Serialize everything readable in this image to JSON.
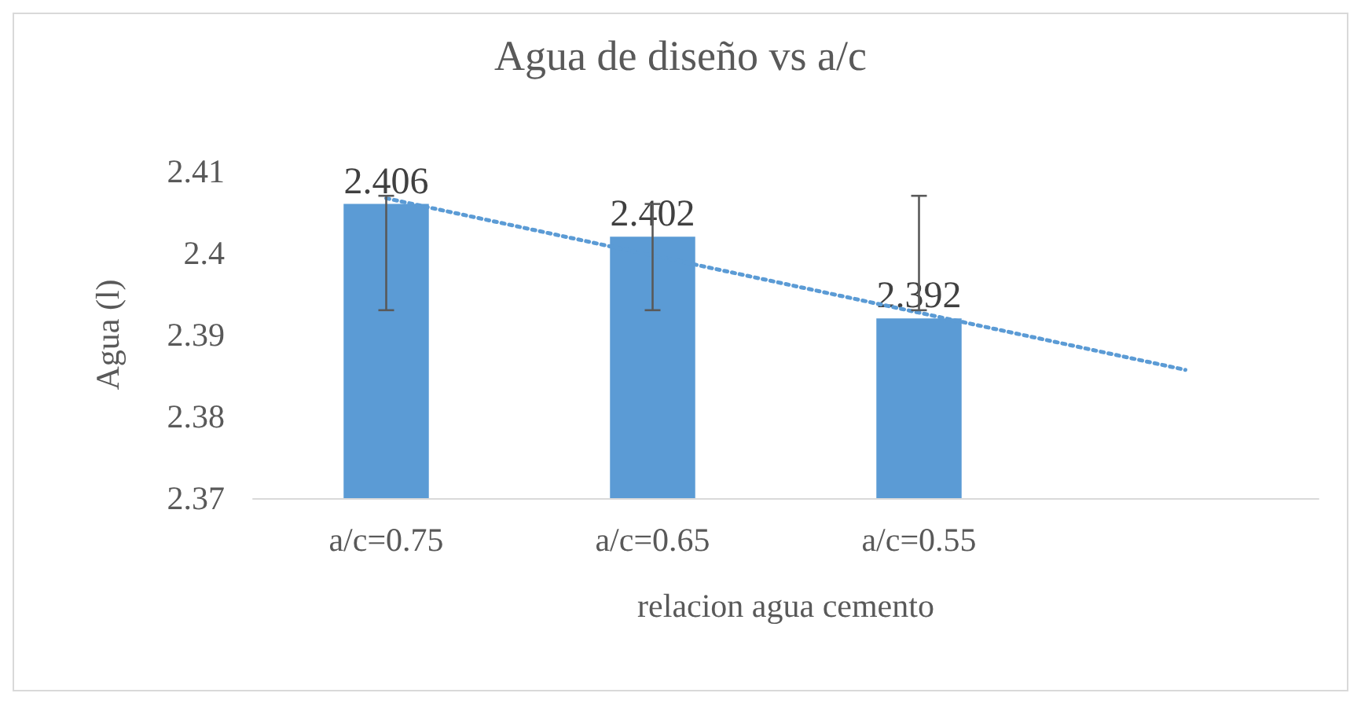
{
  "chart_data": {
    "type": "bar",
    "title": "Agua de diseño vs a/c",
    "xlabel": "relacion agua cemento",
    "ylabel": "Agua (l)",
    "categories": [
      "a/c=0.75",
      "a/c=0.65",
      "a/c=0.55",
      null
    ],
    "series": [
      {
        "color": "#5b9bd5",
        "values": [
          2.406,
          2.402,
          2.392,
          null
        ],
        "value_labels": [
          "2.406",
          "2.402",
          "2.392",
          null
        ],
        "errors": [
          [
            2.393,
            2.407
          ],
          [
            2.393,
            2.406
          ],
          [
            2.393,
            2.407
          ],
          null
        ]
      },
      {
        "type": "line",
        "color": "#5b9bd5",
        "line_style": "dotted",
        "marker": "none",
        "values": [
          2.4067,
          2.3997,
          2.3927,
          2.3857
        ]
      }
    ],
    "ylim": [
      2.37,
      2.41
    ],
    "yticks": [
      2.37,
      2.38,
      2.39,
      2.4,
      2.41
    ],
    "grid": false
  }
}
